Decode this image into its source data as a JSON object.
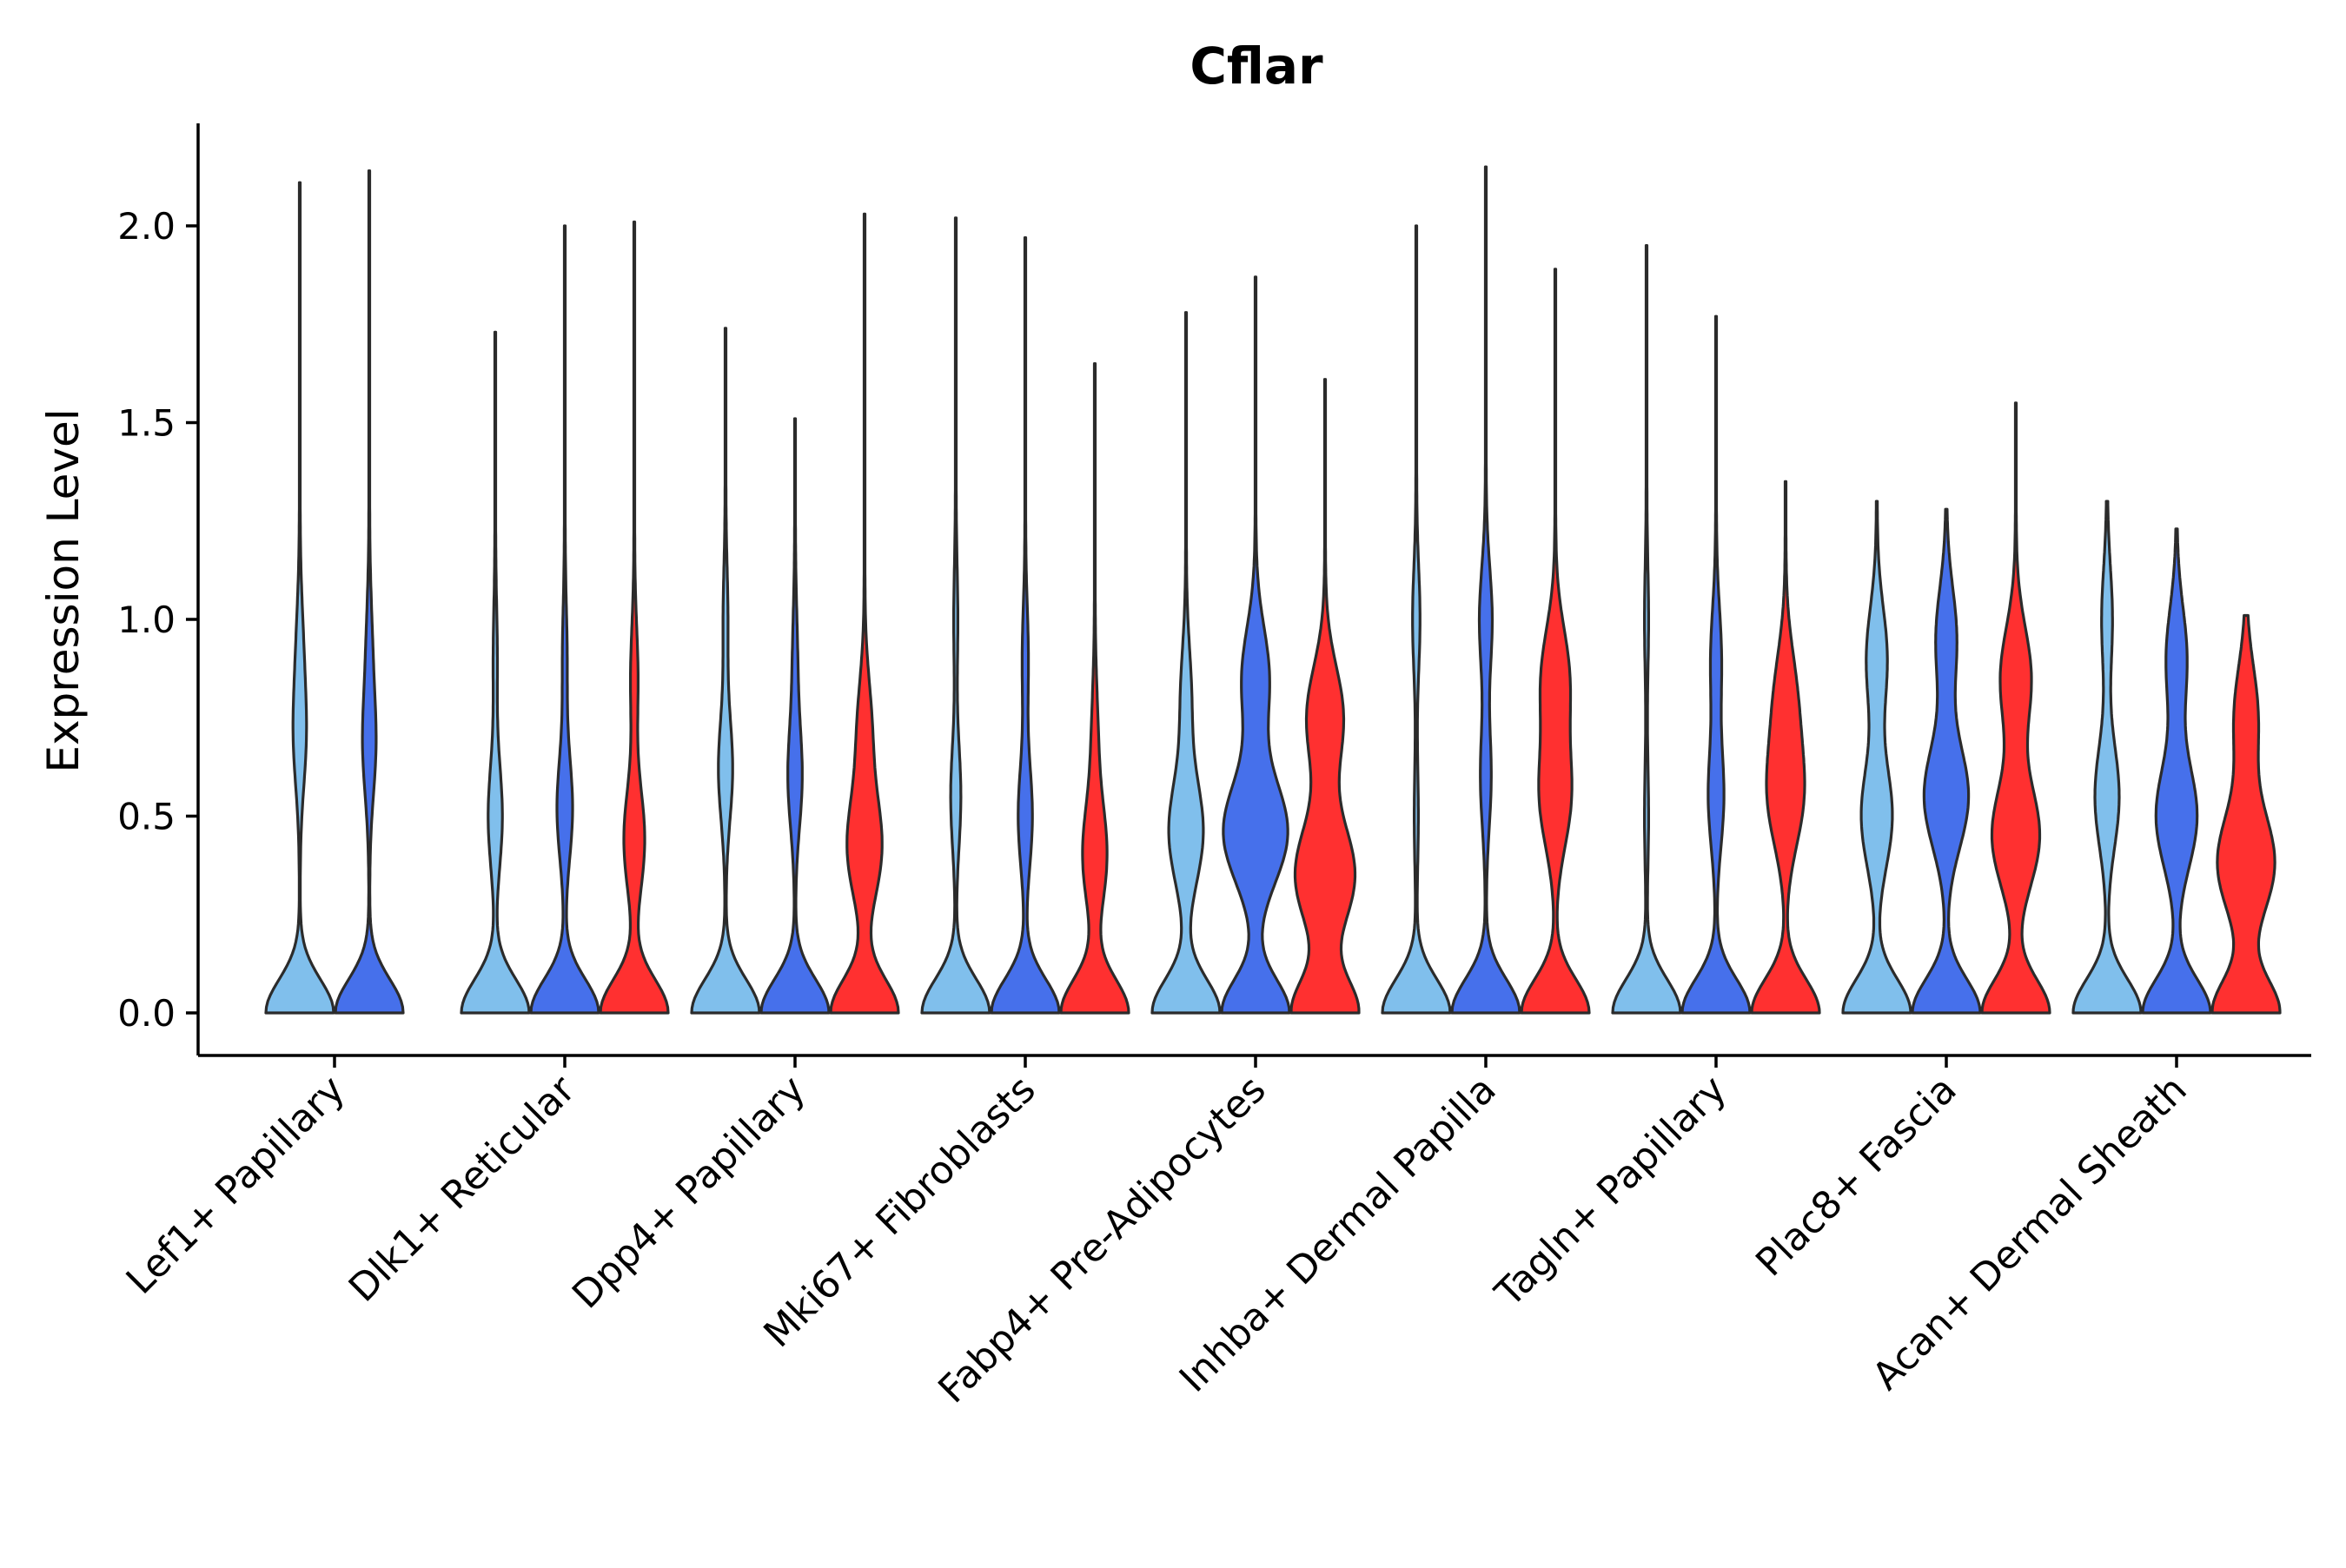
{
  "chart_data": {
    "type": "violin",
    "title": "Cflar",
    "xlabel": "",
    "ylabel": "Expression Level",
    "ylim": [
      -0.11,
      2.27
    ],
    "yticks": [
      "0.0",
      "0.5",
      "1.0",
      "1.5",
      "2.0"
    ],
    "grid": false,
    "legend": "none",
    "series_colors": [
      "#80BFEC",
      "#4670EB",
      "#FF3030"
    ],
    "groups": [
      {
        "name": "Lef1+ Papillary",
        "violins": [
          {
            "color": "#80BFEC",
            "max": 2.11,
            "modes": [
              [
                0.0,
                1.0
              ],
              [
                0.7,
                0.17
              ],
              [
                0.93,
                0.08
              ]
            ]
          },
          {
            "color": "#4670EB",
            "max": 2.14,
            "modes": [
              [
                0.0,
                1.0
              ],
              [
                0.68,
                0.18
              ],
              [
                0.93,
                0.07
              ]
            ]
          }
        ]
      },
      {
        "name": "Dlk1+ Reticular",
        "violins": [
          {
            "color": "#80BFEC",
            "max": 1.73,
            "modes": [
              [
                0.0,
                1.0
              ],
              [
                0.5,
                0.2
              ],
              [
                0.9,
                0.05
              ]
            ]
          },
          {
            "color": "#4670EB",
            "max": 2.0,
            "modes": [
              [
                0.0,
                1.0
              ],
              [
                0.52,
                0.22
              ],
              [
                0.9,
                0.06
              ]
            ]
          },
          {
            "color": "#FF3030",
            "max": 2.01,
            "modes": [
              [
                0.0,
                1.0
              ],
              [
                0.44,
                0.3
              ],
              [
                0.85,
                0.1
              ]
            ]
          }
        ]
      },
      {
        "name": "Dpp4+ Papillary",
        "violins": [
          {
            "color": "#80BFEC",
            "max": 1.74,
            "modes": [
              [
                0.0,
                1.0
              ],
              [
                0.62,
                0.2
              ],
              [
                1.0,
                0.06
              ]
            ]
          },
          {
            "color": "#4670EB",
            "max": 1.51,
            "modes": [
              [
                0.0,
                1.0
              ],
              [
                0.6,
                0.2
              ],
              [
                0.9,
                0.06
              ]
            ]
          },
          {
            "color": "#FF3030",
            "max": 2.03,
            "modes": [
              [
                0.0,
                1.0
              ],
              [
                0.42,
                0.5
              ],
              [
                0.72,
                0.2
              ]
            ]
          }
        ]
      },
      {
        "name": "Mki67+ Fibroblasts",
        "violins": [
          {
            "color": "#80BFEC",
            "max": 2.02,
            "modes": [
              [
                0.0,
                1.0
              ],
              [
                0.55,
                0.14
              ],
              [
                1.0,
                0.05
              ]
            ]
          },
          {
            "color": "#4670EB",
            "max": 1.97,
            "modes": [
              [
                0.0,
                1.0
              ],
              [
                0.5,
                0.2
              ],
              [
                0.9,
                0.08
              ]
            ]
          },
          {
            "color": "#FF3030",
            "max": 1.65,
            "modes": [
              [
                0.0,
                1.0
              ],
              [
                0.4,
                0.35
              ],
              [
                0.7,
                0.08
              ]
            ]
          }
        ]
      },
      {
        "name": "Fabp4+ Pre-Adipocytes",
        "violins": [
          {
            "color": "#80BFEC",
            "max": 1.78,
            "modes": [
              [
                0.0,
                1.0
              ],
              [
                0.46,
                0.5
              ],
              [
                0.8,
                0.15
              ]
            ]
          },
          {
            "color": "#4670EB",
            "max": 1.87,
            "modes": [
              [
                0.0,
                1.0
              ],
              [
                0.46,
                0.95
              ],
              [
                0.85,
                0.4
              ]
            ]
          },
          {
            "color": "#FF3030",
            "max": 1.61,
            "modes": [
              [
                0.0,
                1.0
              ],
              [
                0.35,
                0.9
              ],
              [
                0.75,
                0.55
              ]
            ]
          }
        ]
      },
      {
        "name": "Inhba+ Dermal Papilla",
        "violins": [
          {
            "color": "#80BFEC",
            "max": 2.0,
            "modes": [
              [
                0.0,
                1.0
              ],
              [
                0.5,
                0.05
              ],
              [
                1.0,
                0.1
              ]
            ]
          },
          {
            "color": "#4670EB",
            "max": 2.15,
            "modes": [
              [
                0.0,
                1.0
              ],
              [
                0.6,
                0.15
              ],
              [
                1.0,
                0.18
              ]
            ]
          },
          {
            "color": "#FF3030",
            "max": 1.89,
            "modes": [
              [
                0.0,
                1.0
              ],
              [
                0.55,
                0.45
              ],
              [
                0.85,
                0.4
              ]
            ]
          }
        ]
      },
      {
        "name": "Tagln+ Papillary",
        "violins": [
          {
            "color": "#80BFEC",
            "max": 1.95,
            "modes": [
              [
                0.0,
                1.0
              ],
              [
                0.5,
                0.05
              ],
              [
                1.0,
                0.05
              ]
            ]
          },
          {
            "color": "#4670EB",
            "max": 1.77,
            "modes": [
              [
                0.0,
                1.0
              ],
              [
                0.55,
                0.22
              ],
              [
                0.9,
                0.15
              ]
            ]
          },
          {
            "color": "#FF3030",
            "max": 1.35,
            "modes": [
              [
                0.0,
                1.0
              ],
              [
                0.55,
                0.5
              ],
              [
                0.8,
                0.3
              ]
            ]
          }
        ]
      },
      {
        "name": "Plac8+ Fascia",
        "violins": [
          {
            "color": "#80BFEC",
            "max": 1.3,
            "modes": [
              [
                0.0,
                1.0
              ],
              [
                0.5,
                0.45
              ],
              [
                0.9,
                0.3
              ]
            ]
          },
          {
            "color": "#4670EB",
            "max": 1.28,
            "modes": [
              [
                0.0,
                1.0
              ],
              [
                0.55,
                0.65
              ],
              [
                0.95,
                0.3
              ]
            ]
          },
          {
            "color": "#FF3030",
            "max": 1.55,
            "modes": [
              [
                0.0,
                1.0
              ],
              [
                0.45,
                0.7
              ],
              [
                0.85,
                0.45
              ]
            ]
          }
        ]
      },
      {
        "name": "Acan+ Dermal Sheath",
        "violins": [
          {
            "color": "#80BFEC",
            "max": 1.3,
            "modes": [
              [
                0.0,
                1.0
              ],
              [
                0.55,
                0.35
              ],
              [
                1.0,
                0.15
              ]
            ]
          },
          {
            "color": "#4670EB",
            "max": 1.23,
            "modes": [
              [
                0.0,
                1.0
              ],
              [
                0.5,
                0.6
              ],
              [
                0.9,
                0.3
              ]
            ]
          },
          {
            "color": "#FF3030",
            "max": 1.01,
            "modes": [
              [
                0.0,
                1.0
              ],
              [
                0.38,
                0.85
              ],
              [
                0.75,
                0.35
              ]
            ]
          }
        ]
      }
    ]
  }
}
